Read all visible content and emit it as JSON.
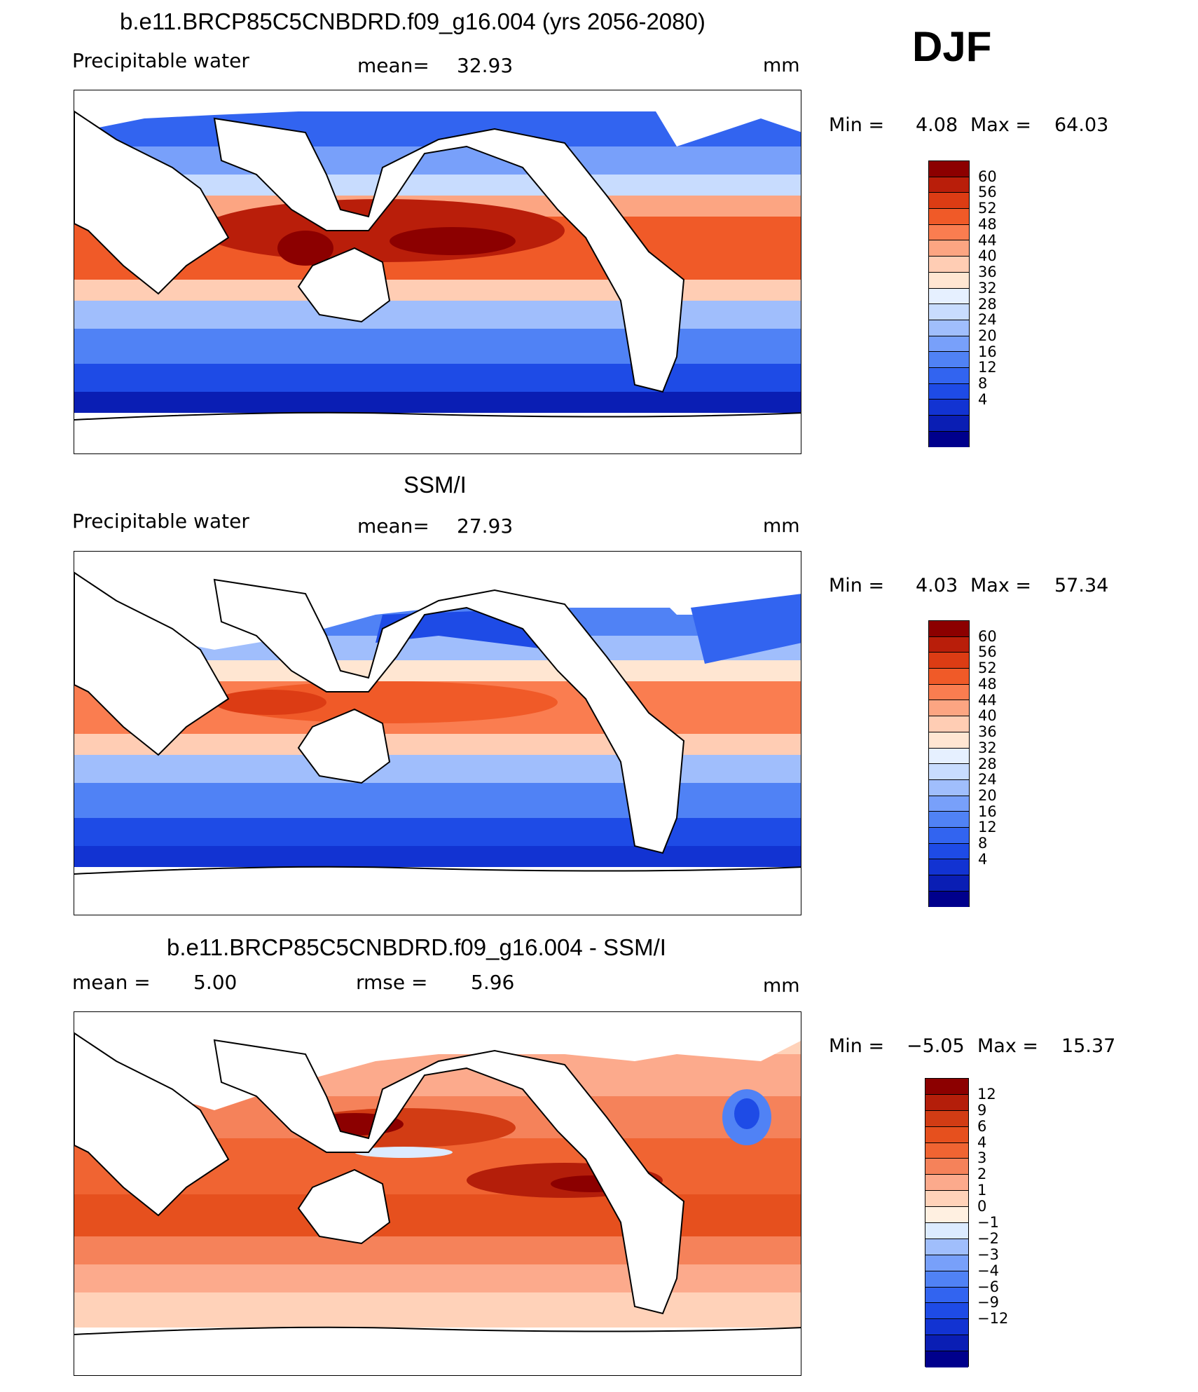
{
  "season": "DJF",
  "colors": {
    "pw_scale": [
      "#00008c",
      "#0a1eb4",
      "#1233d2",
      "#1e4be6",
      "#3264f0",
      "#5082f5",
      "#78a0fa",
      "#a0befc",
      "#c8dcfe",
      "#e6f0ff",
      "#ffe6d2",
      "#ffcdb4",
      "#fca582",
      "#fa7d50",
      "#f05a28",
      "#dc3c14",
      "#b91e0a",
      "#8c0000"
    ],
    "diff_scale": [
      "#00008c",
      "#0a1eb4",
      "#1233d2",
      "#1e4be6",
      "#3264f0",
      "#5082f5",
      "#78a0fa",
      "#a0befc",
      "#dcebff",
      "#fff0e1",
      "#ffd2b9",
      "#fcaa8c",
      "#f5825a",
      "#f06432",
      "#e6501e",
      "#d23c14",
      "#b41e0a",
      "#8c0000"
    ]
  },
  "panels": [
    {
      "title": "b.e11.BRCP85C5CNBDRD.f09_g16.004 (yrs 2056-2080)",
      "left_label": "Precipitable water",
      "mid_label": "mean=",
      "mid_value": "32.93",
      "units": "mm",
      "min_label": "Min =",
      "min_value": "4.08",
      "max_label": "Max =",
      "max_value": "64.03",
      "colorbar_labels": [
        "60",
        "56",
        "52",
        "48",
        "44",
        "40",
        "36",
        "32",
        "28",
        "24",
        "20",
        "16",
        "12",
        "8",
        "4"
      ]
    },
    {
      "title": "SSM/I",
      "left_label": "Precipitable water",
      "mid_label": "mean=",
      "mid_value": "27.93",
      "units": "mm",
      "min_label": "Min =",
      "min_value": "4.03",
      "max_label": "Max =",
      "max_value": "57.34",
      "colorbar_labels": [
        "60",
        "56",
        "52",
        "48",
        "44",
        "40",
        "36",
        "32",
        "28",
        "24",
        "20",
        "16",
        "12",
        "8",
        "4"
      ]
    },
    {
      "title": "b.e11.BRCP85C5CNBDRD.f09_g16.004 - SSM/I",
      "left_label": "mean =",
      "left_value": "5.00",
      "mid_label": "rmse =",
      "mid_value": "5.96",
      "units": "mm",
      "min_label": "Min =",
      "min_value": "−5.05",
      "max_label": "Max =",
      "max_value": "15.37",
      "colorbar_labels": [
        "12",
        "9",
        "6",
        "4",
        "3",
        "2",
        "1",
        "0",
        "−1",
        "−2",
        "−3",
        "−4",
        "−6",
        "−9",
        "−12"
      ]
    }
  ]
}
